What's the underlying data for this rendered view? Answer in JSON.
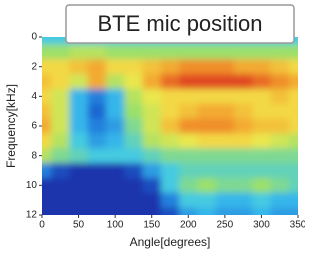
{
  "chart_data": {
    "type": "heatmap",
    "title": "BTE mic position",
    "x_label": "Angle[degrees]",
    "y_label": "Frequency[kHz]",
    "x": [
      0,
      25,
      50,
      75,
      100,
      125,
      150,
      175,
      200,
      225,
      250,
      275,
      300,
      325,
      350
    ],
    "y": [
      0,
      1,
      2,
      3,
      4,
      5,
      6,
      7,
      8,
      9,
      10,
      11,
      12
    ],
    "z": [
      [
        0.35,
        0.35,
        0.35,
        0.35,
        0.35,
        0.35,
        0.35,
        0.35,
        0.35,
        0.35,
        0.35,
        0.35,
        0.35,
        0.35,
        0.35
      ],
      [
        0.5,
        0.5,
        0.55,
        0.55,
        0.5,
        0.5,
        0.5,
        0.5,
        0.5,
        0.5,
        0.5,
        0.5,
        0.5,
        0.5,
        0.5
      ],
      [
        0.7,
        0.7,
        0.75,
        0.8,
        0.7,
        0.7,
        0.75,
        0.8,
        0.85,
        0.85,
        0.85,
        0.8,
        0.8,
        0.75,
        0.7
      ],
      [
        0.75,
        0.7,
        0.6,
        0.8,
        0.55,
        0.65,
        0.8,
        0.9,
        0.95,
        0.95,
        0.95,
        0.95,
        0.9,
        0.85,
        0.8
      ],
      [
        0.7,
        0.6,
        0.3,
        0.2,
        0.3,
        0.55,
        0.65,
        0.7,
        0.7,
        0.7,
        0.7,
        0.7,
        0.7,
        0.75,
        0.7
      ],
      [
        0.75,
        0.6,
        0.3,
        0.15,
        0.3,
        0.5,
        0.6,
        0.7,
        0.75,
        0.8,
        0.8,
        0.75,
        0.7,
        0.7,
        0.7
      ],
      [
        0.8,
        0.6,
        0.3,
        0.2,
        0.25,
        0.45,
        0.6,
        0.75,
        0.85,
        0.85,
        0.85,
        0.8,
        0.75,
        0.75,
        0.7
      ],
      [
        0.7,
        0.55,
        0.35,
        0.25,
        0.3,
        0.4,
        0.55,
        0.6,
        0.65,
        0.7,
        0.7,
        0.7,
        0.65,
        0.6,
        0.55
      ],
      [
        0.55,
        0.45,
        0.4,
        0.35,
        0.35,
        0.35,
        0.4,
        0.45,
        0.45,
        0.45,
        0.45,
        0.45,
        0.45,
        0.45,
        0.45
      ],
      [
        0.2,
        0.1,
        0.05,
        0.05,
        0.05,
        0.1,
        0.25,
        0.35,
        0.4,
        0.4,
        0.4,
        0.4,
        0.4,
        0.4,
        0.4
      ],
      [
        0.05,
        0.05,
        0.05,
        0.05,
        0.05,
        0.05,
        0.1,
        0.35,
        0.45,
        0.5,
        0.45,
        0.45,
        0.5,
        0.45,
        0.4
      ],
      [
        0.05,
        0.05,
        0.05,
        0.05,
        0.05,
        0.05,
        0.05,
        0.2,
        0.35,
        0.35,
        0.3,
        0.3,
        0.35,
        0.3,
        0.3
      ],
      [
        0.05,
        0.05,
        0.05,
        0.05,
        0.05,
        0.05,
        0.05,
        0.1,
        0.25,
        0.3,
        0.25,
        0.25,
        0.3,
        0.25,
        0.25
      ]
    ],
    "zlim": [
      0,
      1
    ],
    "colormap": [
      "#1a1a9a",
      "#1e6fd8",
      "#3cc8ee",
      "#9be06a",
      "#f3e84a",
      "#f39a2a",
      "#d8281e"
    ],
    "xlim": [
      0,
      350
    ],
    "xticks": [
      0,
      50,
      100,
      150,
      200,
      250,
      300,
      350
    ],
    "ylim": [
      0,
      12
    ],
    "yticks": [
      0,
      2,
      4,
      6,
      8,
      10,
      12
    ],
    "y_inverted": true
  }
}
